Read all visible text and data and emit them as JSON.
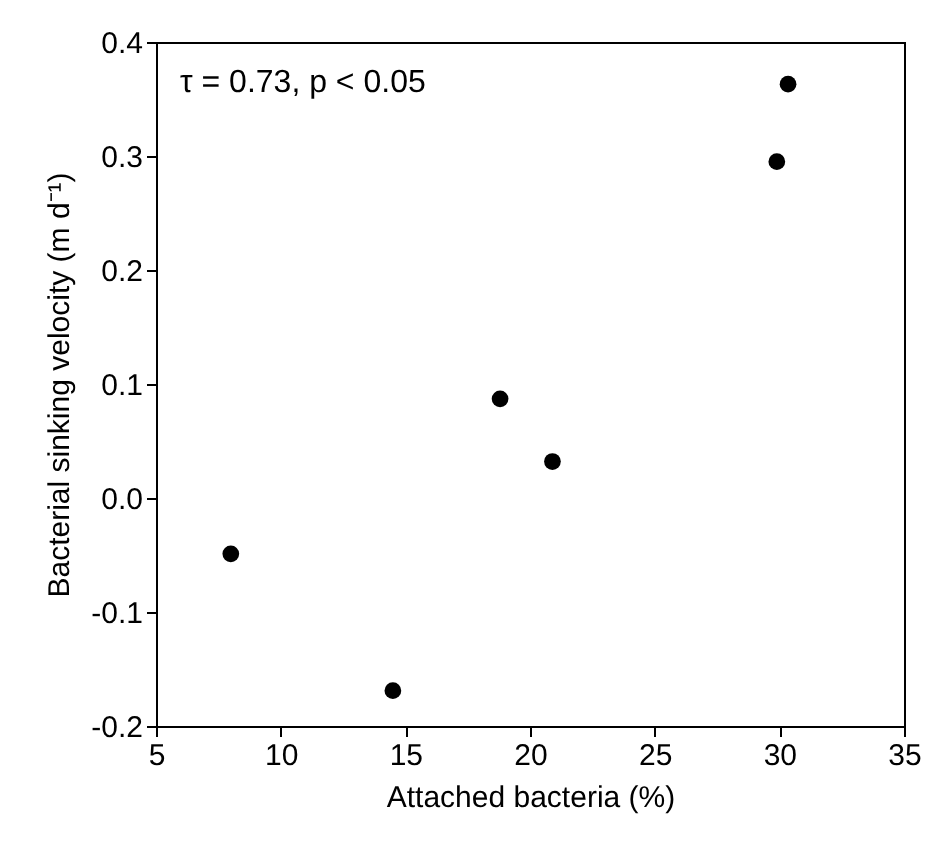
{
  "chart_data": {
    "type": "scatter",
    "xlabel": "Attached bacteria (%)",
    "ylabel": "Bacterial  sinking velocity (m d⁻¹)",
    "annotations": [
      "τ = 0.73, p < 0.05"
    ],
    "x": [
      8.0,
      14.5,
      18.8,
      20.9,
      29.9,
      30.35
    ],
    "series": [
      {
        "color": "#000000",
        "values": [
          -0.049,
          -0.169,
          0.087,
          0.032,
          0.295,
          0.363
        ]
      }
    ],
    "xlim": [
      5,
      35
    ],
    "xticks": [
      5,
      10,
      15,
      20,
      25,
      30,
      35
    ],
    "ylim": [
      -0.2,
      0.4
    ],
    "yticks": [
      {
        "value": -0.2,
        "label": "-0.2"
      },
      {
        "value": -0.1,
        "label": "-0.1"
      },
      {
        "value": 0,
        "label": "0.0"
      },
      {
        "value": 0.1,
        "label": "0.1"
      },
      {
        "value": 0.2,
        "label": "0.2"
      },
      {
        "value": 0.3,
        "label": "0.3"
      },
      {
        "value": 0.4,
        "label": "0.4"
      }
    ],
    "grid": false,
    "marker": "circle"
  }
}
